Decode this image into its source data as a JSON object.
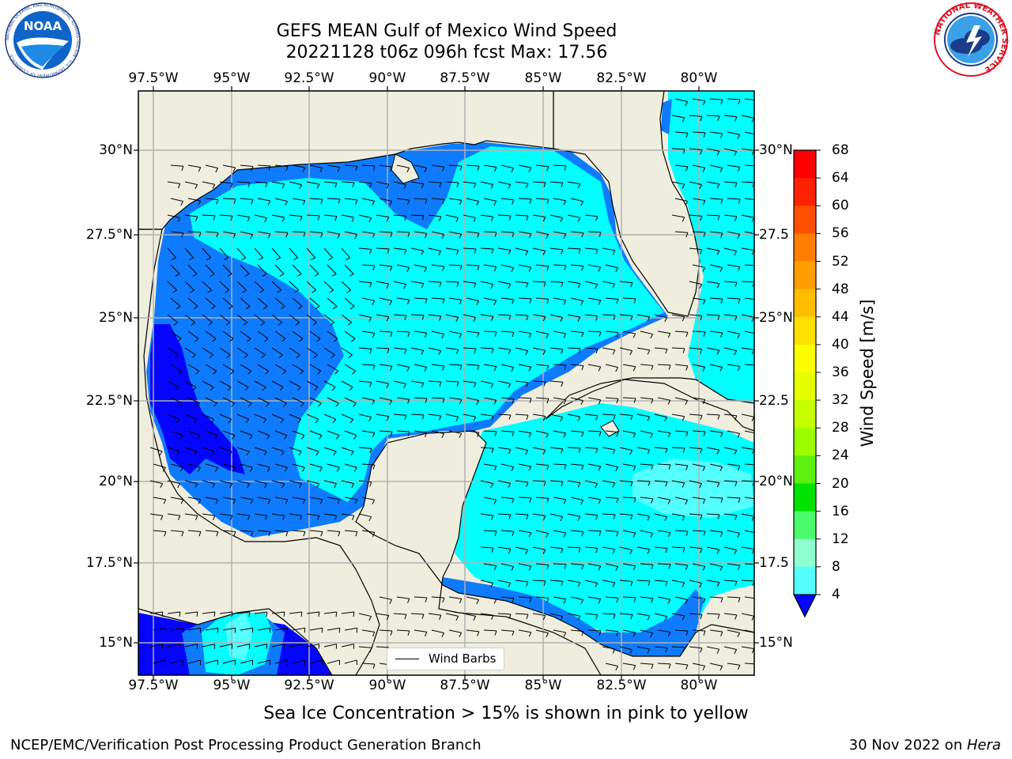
{
  "title": {
    "line1": "GEFS MEAN Gulf of Mexico Wind Speed",
    "line2": "20221128 t06z 096h fcst   Max: 17.56"
  },
  "logos": {
    "left": {
      "icon": "noaa-logo",
      "text": "NOAA",
      "ring_text": "NATIONAL OCEANIC AND ATMOSPHERIC ADMINISTRATION · U.S. DEPARTMENT OF COMMERCE"
    },
    "right": {
      "icon": "nws-logo",
      "ring_text": "NATIONAL WEATHER SERVICE"
    }
  },
  "map": {
    "lon_labels": [
      "97.5°W",
      "95°W",
      "92.5°W",
      "90°W",
      "87.5°W",
      "85°W",
      "82.5°W",
      "80°W"
    ],
    "lat_labels_left": [
      "30°N",
      "27.5°N",
      "25°N",
      "22.5°N",
      "20°N",
      "17.5°N",
      "15°N"
    ],
    "lat_labels_right": [
      "30°N",
      "27.5",
      "25°N",
      "22.5",
      "20°N",
      "17.5",
      "15°N"
    ],
    "legend": {
      "label": "Wind Barbs"
    },
    "colors": {
      "land": "#efeede",
      "level_4_8": "#0e7bff",
      "level_0_4": "#0505ff",
      "level_8_12": "#00ffff",
      "level_12_16": "#53ffff"
    }
  },
  "colorbar": {
    "label": "Wind Speed [m/s]",
    "ticks": [
      "68",
      "64",
      "60",
      "56",
      "52",
      "48",
      "44",
      "40",
      "36",
      "32",
      "28",
      "24",
      "20",
      "16",
      "12",
      "8",
      "4"
    ],
    "colors": [
      "#ff0000",
      "#ff2200",
      "#ff5000",
      "#ff7e00",
      "#ff9e00",
      "#ffbd00",
      "#ffe000",
      "#fbff00",
      "#e5ff00",
      "#c5ff00",
      "#9cff00",
      "#5cf00e",
      "#00e200",
      "#4bfb6c",
      "#90ffd0",
      "#53ffff",
      "#00ffff",
      "#0e7bff"
    ],
    "extend_color": "#0505ff"
  },
  "captions": {
    "sea_ice": "Sea Ice Concentration > 15% is shown in pink to yellow",
    "footer_left": "NCEP/EMC/Verification Post Processing Product Generation Branch",
    "footer_date": "30 Nov 2022 on ",
    "footer_host": "Hera"
  }
}
